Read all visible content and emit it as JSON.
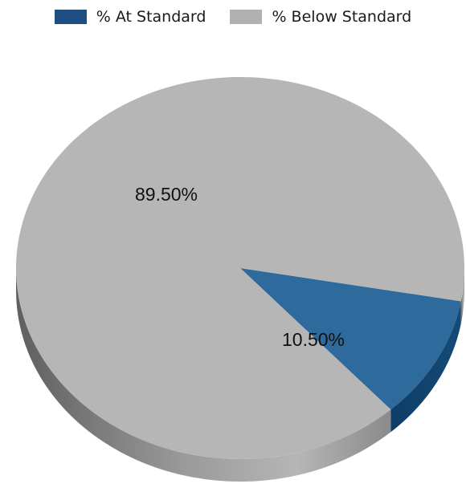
{
  "chart_data": {
    "type": "pie",
    "categories": [
      "% At Standard",
      "% Below Standard"
    ],
    "values": [
      10.5,
      89.5
    ],
    "data_labels": [
      "10.50%",
      "89.50%"
    ],
    "colors": [
      "#2e6a9c",
      "#b5b6b5"
    ],
    "legend": {
      "placement": "top",
      "items": [
        {
          "label": "% At Standard",
          "color": "#1f4f82"
        },
        {
          "label": "% Below Standard",
          "color": "#b0b1b0"
        }
      ]
    },
    "style": "3d"
  }
}
